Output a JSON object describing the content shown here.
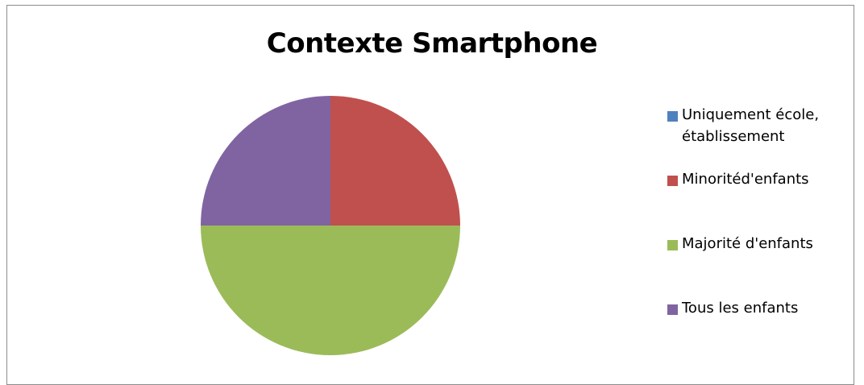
{
  "chart_data": {
    "type": "pie",
    "title": "Contexte Smartphone",
    "categories": [
      "Uniquement école, établissement",
      "Minoritéd'enfants",
      "Majorité d'enfants",
      "Tous les enfants"
    ],
    "values": [
      0,
      25,
      50,
      25
    ],
    "colors": [
      "#4f81bd",
      "#c0504d",
      "#9bbb59",
      "#8064a2"
    ],
    "legend_position": "right"
  }
}
